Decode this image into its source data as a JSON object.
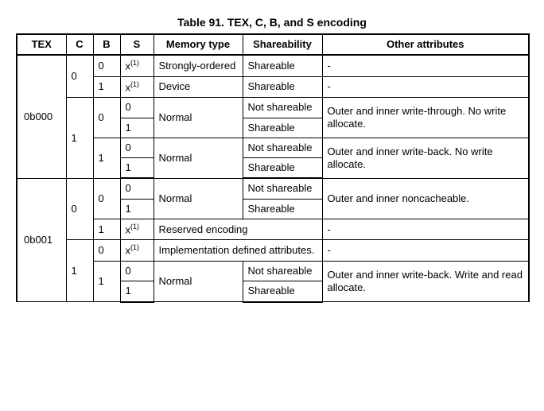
{
  "caption": "Table 91. TEX, C, B, and S encoding",
  "headers": {
    "tex": "TEX",
    "c": "C",
    "b": "B",
    "s": "S",
    "mem": "Memory type",
    "share": "Shareability",
    "other": "Other attributes"
  },
  "footnote_marker": "(1)",
  "tex_values": [
    "0b000",
    "0b001"
  ],
  "c_values": [
    "0",
    "1"
  ],
  "b_values": [
    "0",
    "1"
  ],
  "s_values": [
    "0",
    "1",
    "x"
  ],
  "mem": {
    "strongly_ordered": "Strongly-ordered",
    "device": "Device",
    "normal": "Normal",
    "reserved": "Reserved encoding",
    "impl_def": "Implementation defined attributes."
  },
  "share": {
    "shareable": "Shareable",
    "not_shareable": "Not shareable"
  },
  "other": {
    "dash": "-",
    "wt_no_alloc": "Outer and inner write-through. No write allocate.",
    "wb_no_alloc": "Outer and inner write-back. No write allocate.",
    "noncacheable": "Outer and inner noncacheable.",
    "wb_rw_alloc": "Outer and inner write-back. Write and read allocate."
  }
}
